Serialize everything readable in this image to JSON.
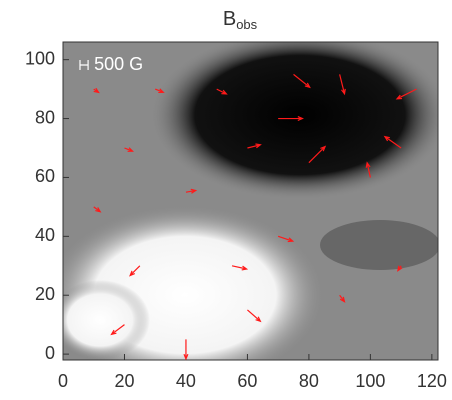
{
  "chart_data": {
    "type": "vector",
    "title": "B",
    "title_subscript": "obs",
    "annotation": "500 G",
    "scale_length": 500,
    "color": "#ff1a1a",
    "xlim": [
      0,
      122
    ],
    "ylim": [
      -2,
      106
    ],
    "xticks": [
      0,
      20,
      40,
      60,
      80,
      100,
      120
    ],
    "yticks": [
      0,
      20,
      40,
      60,
      80,
      100
    ],
    "vectors": {
      "x": [
        70,
        80,
        110,
        115,
        90,
        75,
        60,
        100,
        40,
        20,
        60,
        55,
        25,
        70,
        40,
        20,
        10,
        110,
        90,
        10,
        30,
        50
      ],
      "y": [
        80,
        65,
        70,
        90,
        95,
        95,
        70,
        60,
        5,
        10,
        15,
        30,
        30,
        40,
        55,
        70,
        50,
        30,
        20,
        90,
        90,
        90
      ],
      "u": [
        1500,
        1000,
        -1000,
        -1200,
        300,
        1000,
        800,
        -200,
        0,
        -800,
        800,
        900,
        -600,
        900,
        600,
        500,
        400,
        -200,
        300,
        300,
        500,
        600
      ],
      "v": [
        0,
        1000,
        700,
        -600,
        -1200,
        -800,
        200,
        900,
        -1200,
        -600,
        -700,
        -200,
        -600,
        -300,
        100,
        -200,
        -300,
        -300,
        -400,
        -200,
        -200,
        -300
      ]
    }
  }
}
